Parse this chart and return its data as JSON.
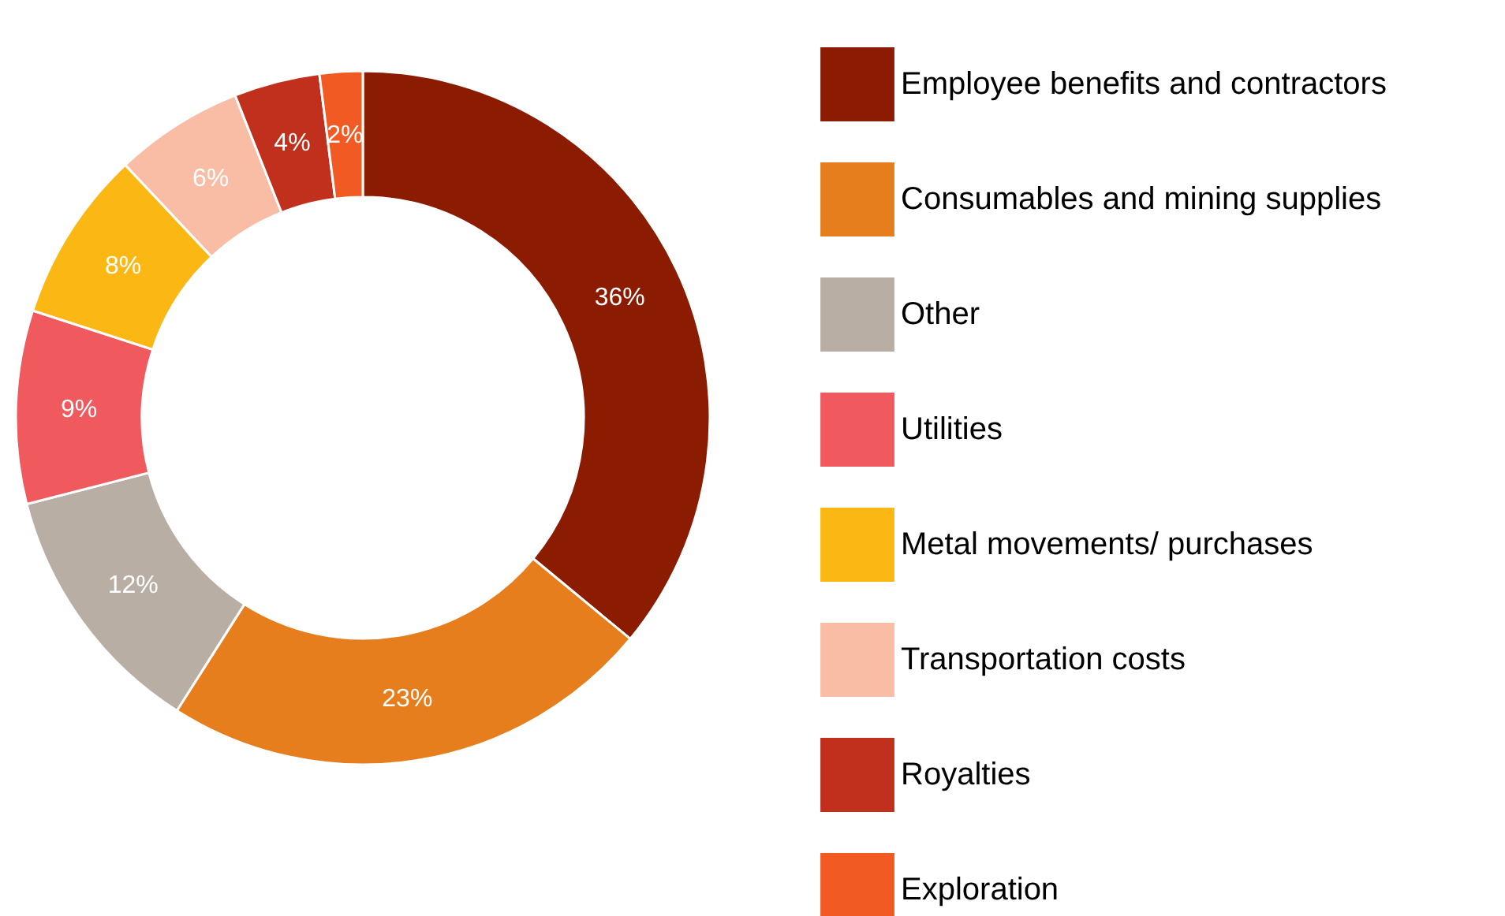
{
  "chart_data": {
    "type": "donut",
    "categories": [
      "Employee benefits and contractors",
      "Consumables and mining supplies",
      "Other",
      "Utilities",
      "Metal movements/ purchases",
      "Transportation costs",
      "Royalties",
      "Exploration"
    ],
    "values": [
      36,
      23,
      12,
      9,
      8,
      6,
      4,
      2
    ],
    "value_labels": [
      "36%",
      "23%",
      "12%",
      "9%",
      "8%",
      "6%",
      "4%",
      "2%"
    ],
    "colors": [
      "#8b1c02",
      "#e67e1e",
      "#b9aea3",
      "#f05a5e",
      "#fbb714",
      "#f9bda6",
      "#c0301c",
      "#f15a22"
    ],
    "legend": "right"
  }
}
